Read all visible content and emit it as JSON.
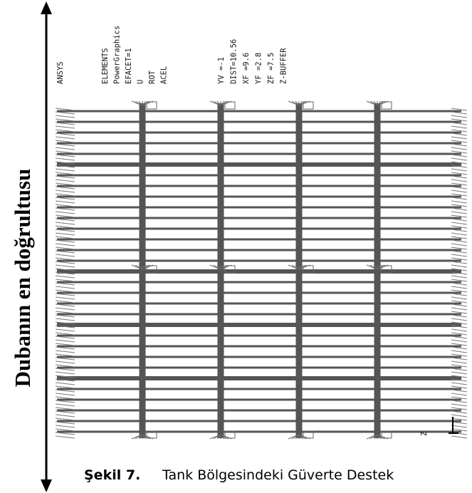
{
  "figure": {
    "axis_label": "Dubanın en doğrultusu",
    "ansys": {
      "logo": "ANSYS",
      "settings": [
        "ELEMENTS",
        "PowerGraphics",
        "EFACET=1",
        "U",
        "ROT",
        "ACEL"
      ],
      "view": [
        "YV =-1",
        "DIST=10.56",
        "XF =9.6",
        "YF =2.8",
        "ZF =7.5",
        "Z-BUFFER"
      ]
    },
    "triad_label": "Z"
  },
  "caption": {
    "label": "Şekil 7.",
    "text": "Tank Bölgesindeki Güverte Destek"
  }
}
